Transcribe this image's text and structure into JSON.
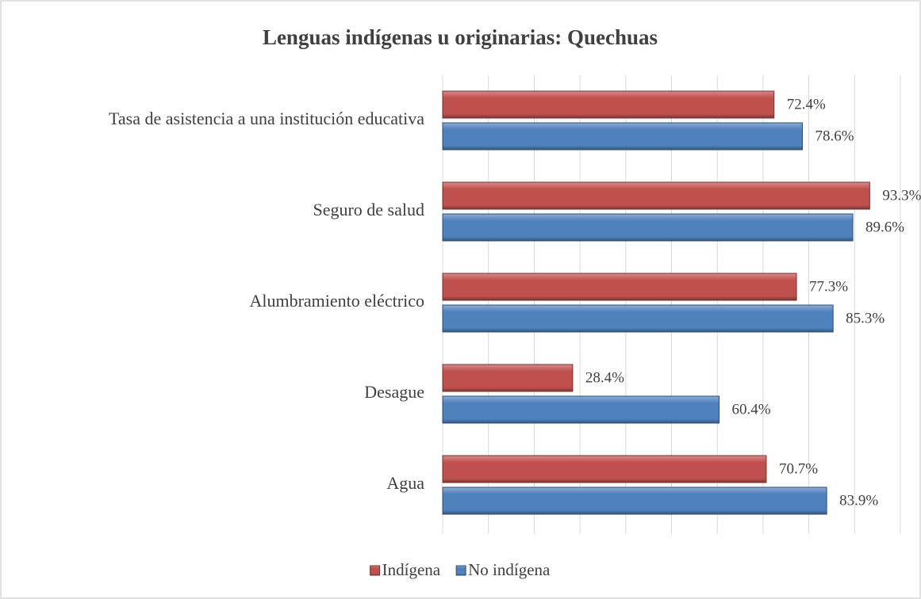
{
  "chart_data": {
    "type": "hbar",
    "title": "Lenguas indígenas u originarias: Quechuas",
    "categories": [
      "Tasa de asistencia a una institución educativa",
      "Seguro de salud",
      "Alumbramiento eléctrico",
      "Desague",
      "Agua"
    ],
    "series": [
      {
        "name": "Indígena",
        "color": "#c0504d",
        "values": [
          72.4,
          93.3,
          77.3,
          28.4,
          70.7
        ],
        "value_labels": [
          "72.4%",
          "93.3%",
          "77.3%",
          "28.4%",
          "70.7%"
        ]
      },
      {
        "name": "No indígena",
        "color": "#4f81bd",
        "values": [
          78.6,
          89.6,
          85.3,
          60.4,
          83.9
        ],
        "value_labels": [
          "78.6%",
          "89.6%",
          "85.3%",
          "60.4%",
          "83.9%"
        ]
      }
    ],
    "xlim": [
      0,
      100
    ],
    "xticks": [
      0,
      10,
      20,
      30,
      40,
      50,
      60,
      70,
      80,
      90,
      100
    ],
    "grid": true,
    "legend": "bottom"
  }
}
